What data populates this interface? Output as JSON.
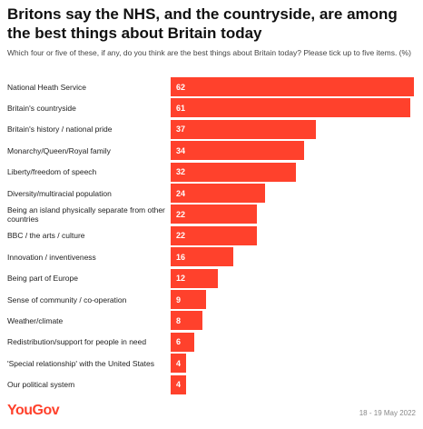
{
  "title": "Britons say the NHS, and the countryside, are among the best things about Britain today",
  "subtitle": "Which four or five of these, if any, do you think are the best things about Britain today? Please tick up to five items. (%)",
  "footer": {
    "logo": "YouGov",
    "date": "18 - 19 May 2022"
  },
  "colors": {
    "bar": "#ff412c",
    "value_text": "#ffffff"
  },
  "chart_data": {
    "type": "bar",
    "orientation": "horizontal",
    "title": "Britons say the NHS, and the countryside, are among the best things about Britain today",
    "subtitle": "Which four or five of these, if any, do you think are the best things about Britain today? Please tick up to five items. (%)",
    "xlim": [
      0,
      62
    ],
    "grid": false,
    "categories": [
      "National Heath Service",
      "Britain's countryside",
      "Britain's history / national pride",
      "Monarchy/Queen/Royal family",
      "Liberty/freedom of speech",
      "Diversity/multiracial population",
      "Being an island physically separate from other countries",
      "BBC / the arts / culture",
      "Innovation / inventiveness",
      "Being part of Europe",
      "Sense of community / co-operation",
      "Weather/climate",
      "Redistribution/support for people in need",
      "'Special relationship' with the United States",
      "Our political system"
    ],
    "values": [
      62,
      61,
      37,
      34,
      32,
      24,
      22,
      22,
      16,
      12,
      9,
      8,
      6,
      4,
      4
    ]
  }
}
